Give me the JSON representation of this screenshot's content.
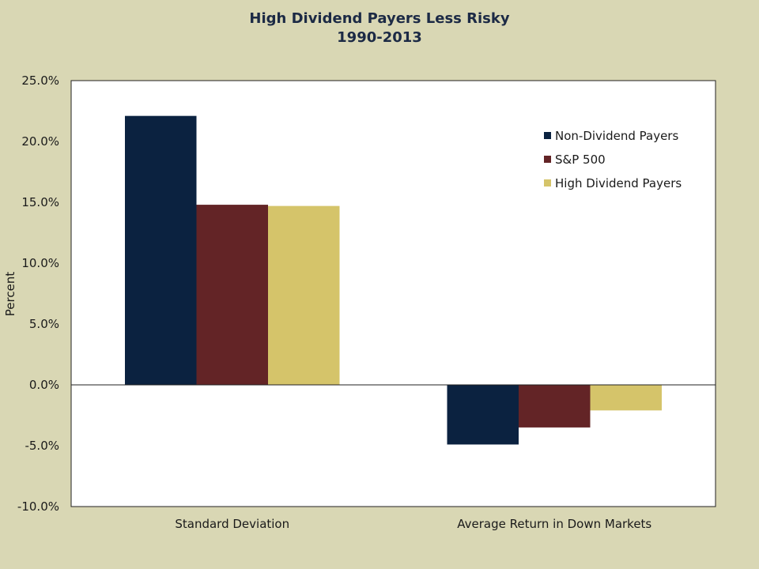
{
  "chart_data": {
    "type": "bar",
    "title": "High Dividend Payers Less Risky",
    "subtitle": "1990-2013",
    "xlabel": "",
    "ylabel": "Percent",
    "ylim": [
      -10,
      25
    ],
    "yticks": [
      25,
      20,
      15,
      10,
      5,
      0,
      -5,
      -10
    ],
    "ytick_labels": [
      "25.0%",
      "20.0%",
      "15.0%",
      "10.0%",
      "5.0%",
      "0.0%",
      "-5.0%",
      "-10.0%"
    ],
    "categories": [
      "Standard Deviation",
      "Average Return in Down Markets"
    ],
    "series": [
      {
        "name": "Non-Dividend Payers",
        "color": "#0b2240",
        "values": [
          22.1,
          -4.9
        ]
      },
      {
        "name": "S&P 500",
        "color": "#632426",
        "values": [
          14.8,
          -3.5
        ]
      },
      {
        "name": "High Dividend Payers",
        "color": "#d5c46a",
        "values": [
          14.7,
          -2.1
        ]
      }
    ],
    "legend_position": "top-right",
    "grid": false,
    "plot_background": "#ffffff",
    "page_background": "#d9d7b4"
  }
}
